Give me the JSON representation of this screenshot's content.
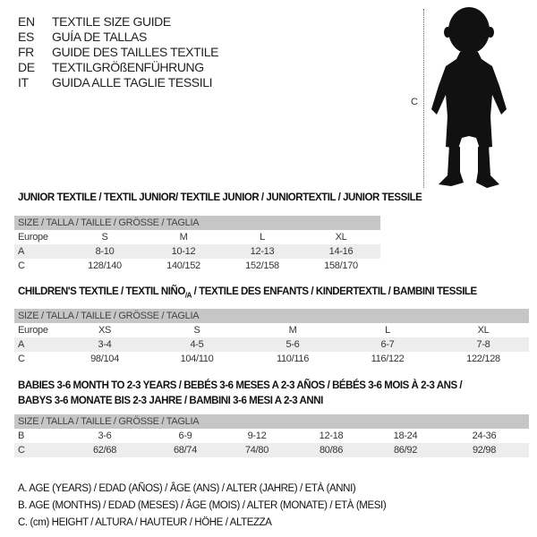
{
  "languages": [
    {
      "code": "EN",
      "title": "TEXTILE SIZE GUIDE"
    },
    {
      "code": "ES",
      "title": "GUÍA DE TALLAS"
    },
    {
      "code": "FR",
      "title": "GUIDE DES TAILLES TEXTILE"
    },
    {
      "code": "DE",
      "title": "TEXTILGRÖßENFÜHRUNG"
    },
    {
      "code": "IT",
      "title": "GUIDA ALLE TAGLIE TESSILI"
    }
  ],
  "figure": {
    "height_label": "C"
  },
  "size_header": "SIZE / TALLA / TAILLE / GRÖSSE / TAGLIA",
  "junior": {
    "title": "JUNIOR TEXTILE / TEXTIL JUNIOR/ TEXTILE JUNIOR / JUNIORTEXTIL / JUNIOR TESSILE",
    "rows": [
      {
        "label": "Europe",
        "values": [
          "S",
          "M",
          "L",
          "XL"
        ]
      },
      {
        "label": "A",
        "values": [
          "8-10",
          "10-12",
          "12-13",
          "14-16"
        ]
      },
      {
        "label": "C",
        "values": [
          "128/140",
          "140/152",
          "152/158",
          "158/170"
        ]
      }
    ]
  },
  "children": {
    "title_a": "CHILDREN'S TEXTILE / TEXTIL NIÑO",
    "title_sub": "/A",
    "title_b": " / TEXTILE DES ENFANTS / KINDERTEXTIL / BAMBINI TESSILE",
    "rows": [
      {
        "label": "Europe",
        "values": [
          "XS",
          "S",
          "M",
          "L",
          "XL"
        ]
      },
      {
        "label": "A",
        "values": [
          "3-4",
          "4-5",
          "5-6",
          "6-7",
          "7-8"
        ]
      },
      {
        "label": "C",
        "values": [
          "98/104",
          "104/110",
          "110/116",
          "116/122",
          "122/128"
        ]
      }
    ]
  },
  "babies": {
    "title_line1": "BABIES 3-6 MONTH TO 2-3 YEARS / BEBÉS 3-6 MESES A 2-3 AÑOS / BÉBÉS 3-6 MOIS À 2-3 ANS /",
    "title_line2": "BABYS 3-6 MONATE BIS 2-3 JAHRE / BAMBINI 3-6 MESI A 2-3 ANNI",
    "rows": [
      {
        "label": "B",
        "values": [
          "3-6",
          "6-9",
          "9-12",
          "12-18",
          "18-24",
          "24-36"
        ]
      },
      {
        "label": "C",
        "values": [
          "62/68",
          "68/74",
          "74/80",
          "80/86",
          "86/92",
          "92/98"
        ]
      }
    ]
  },
  "legend": [
    "A. AGE (YEARS) / EDAD (AÑOS) / ÂGE (ANS) / ALTER (JAHRE) / ETÀ (ANNI)",
    "B. AGE (MONTHS) / EDAD (MESES) / ÂGE (MOIS) / ALTER (MONATE) / ETÀ (MESI)",
    "C. (cm) HEIGHT / ALTURA / HAUTEUR / HÖHE / ALTEZZA"
  ]
}
